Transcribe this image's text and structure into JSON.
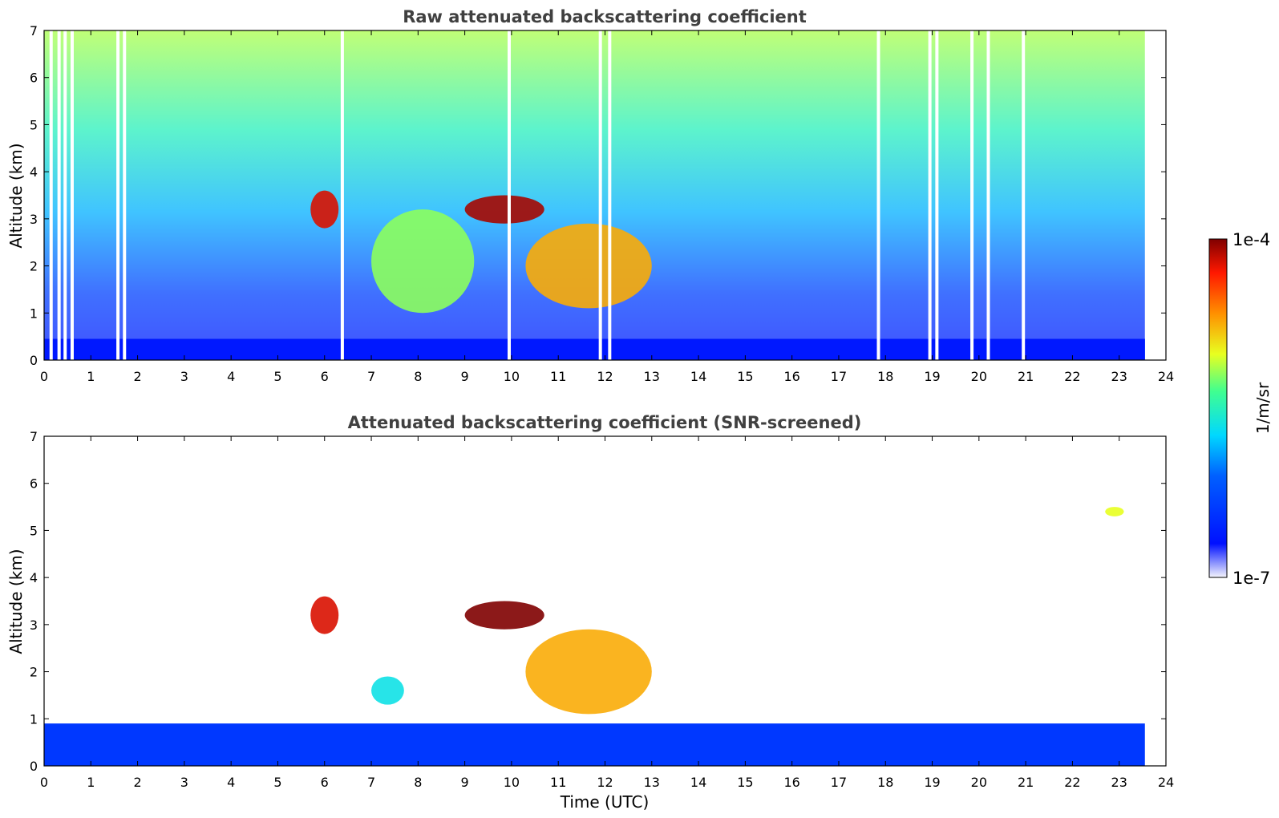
{
  "chart_data": [
    {
      "type": "heatmap",
      "title": "Raw attenuated backscattering coefficient",
      "xlabel": "",
      "ylabel": "Altitude (km)",
      "xlim": [
        0,
        24
      ],
      "ylim": [
        0,
        7
      ],
      "x_ticks": [
        "0",
        "1",
        "2",
        "3",
        "4",
        "5",
        "6",
        "7",
        "8",
        "9",
        "10",
        "11",
        "12",
        "13",
        "14",
        "15",
        "16",
        "17",
        "18",
        "19",
        "20",
        "21",
        "22",
        "23",
        "24"
      ],
      "y_ticks": [
        "0",
        "1",
        "2",
        "3",
        "4",
        "5",
        "6",
        "7"
      ],
      "data_end_time": 23.55,
      "features": [
        {
          "name": "boundary layer",
          "t0": 0,
          "t1": 23.55,
          "z0": 0,
          "z1": 0.45,
          "level": 0.25
        },
        {
          "name": "cloud ~6 UTC",
          "t0": 5.7,
          "t1": 6.3,
          "z0": 2.8,
          "z1": 3.6,
          "level": 0.93
        },
        {
          "name": "cloud ~9.5-10.5 UTC",
          "t0": 9.0,
          "t1": 10.7,
          "z0": 2.9,
          "z1": 3.5,
          "level": 0.97
        },
        {
          "name": "cloud layer 10.5-13 UTC",
          "t0": 10.3,
          "t1": 13.0,
          "z0": 1.1,
          "z1": 2.9,
          "level": 0.75
        },
        {
          "name": "aerosol layer 7-9 UTC",
          "t0": 7.0,
          "t1": 9.2,
          "z0": 1.0,
          "z1": 3.2,
          "level": 0.6
        }
      ],
      "data_gaps_utc": [
        0.15,
        0.32,
        0.45,
        0.6,
        1.58,
        1.72,
        6.38,
        9.95,
        11.9,
        12.1,
        17.85,
        18.95,
        19.1,
        19.85,
        20.2,
        20.95
      ]
    },
    {
      "type": "heatmap",
      "title": "Attenuated backscattering coefficient (SNR-screened)",
      "xlabel": "Time (UTC)",
      "ylabel": "Altitude (km)",
      "xlim": [
        0,
        24
      ],
      "ylim": [
        0,
        7
      ],
      "x_ticks": [
        "0",
        "1",
        "2",
        "3",
        "4",
        "5",
        "6",
        "7",
        "8",
        "9",
        "10",
        "11",
        "12",
        "13",
        "14",
        "15",
        "16",
        "17",
        "18",
        "19",
        "20",
        "21",
        "22",
        "23",
        "24"
      ],
      "y_ticks": [
        "0",
        "1",
        "2",
        "3",
        "4",
        "5",
        "6",
        "7"
      ],
      "data_end_time": 23.55,
      "features": [
        {
          "name": "boundary layer",
          "t0": 0,
          "t1": 23.55,
          "z0": 0,
          "z1": 0.9,
          "level": 0.2
        },
        {
          "name": "cloud ~6 UTC",
          "t0": 5.7,
          "t1": 6.3,
          "z0": 2.8,
          "z1": 3.6,
          "level": 0.93
        },
        {
          "name": "cloud ~9.5-10.5 UTC",
          "t0": 9.0,
          "t1": 10.7,
          "z0": 2.9,
          "z1": 3.5,
          "level": 1.0
        },
        {
          "name": "cloud layer 10.5-13 UTC",
          "t0": 10.3,
          "t1": 13.0,
          "z0": 1.1,
          "z1": 2.9,
          "level": 0.75
        },
        {
          "name": "aerosol 7.5 UTC",
          "t0": 7.0,
          "t1": 7.7,
          "z0": 1.3,
          "z1": 1.9,
          "level": 0.45
        },
        {
          "name": "ice cloud ~23 UTC",
          "t0": 22.7,
          "t1": 23.1,
          "z0": 5.3,
          "z1": 5.5,
          "level": 0.66
        }
      ]
    }
  ],
  "colorbar": {
    "label": "1/m/sr",
    "max_label": "1e-4",
    "min_label": "1e-7"
  }
}
